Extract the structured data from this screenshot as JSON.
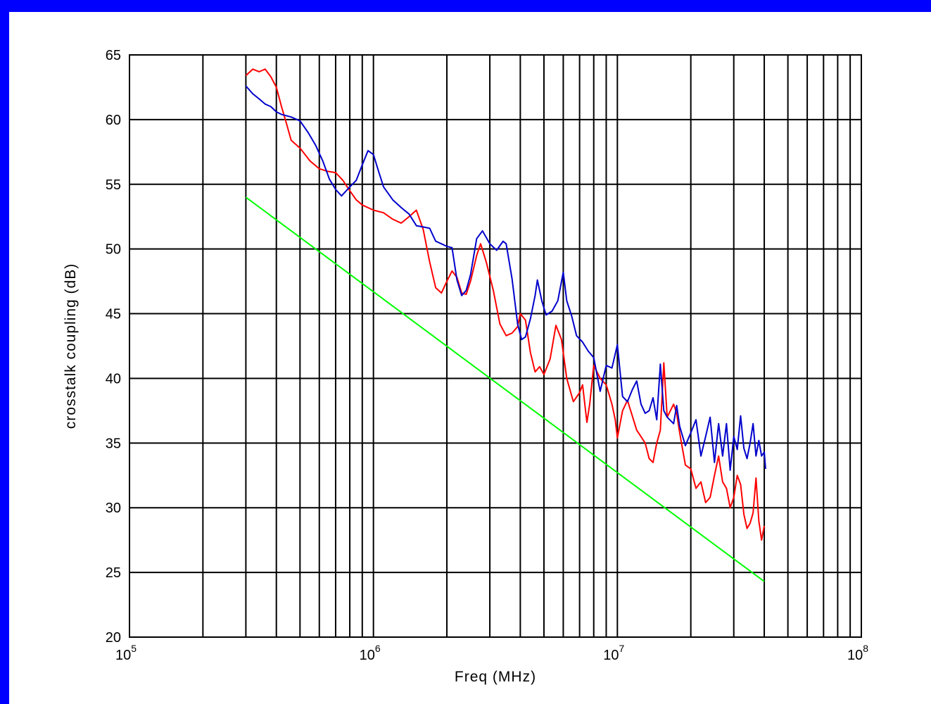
{
  "chart_data": {
    "type": "line",
    "title": "",
    "xlabel": "Freq (MHz)",
    "ylabel": "crosstalk coupling (dB)",
    "xscale": "log",
    "xlim": [
      100000,
      100000000
    ],
    "ylim": [
      20,
      65
    ],
    "grid": true,
    "legend": "none",
    "x_ticks": [
      {
        "value": 100000,
        "base": "10",
        "exp": "5"
      },
      {
        "value": 1000000,
        "base": "10",
        "exp": "6"
      },
      {
        "value": 10000000,
        "base": "10",
        "exp": "7"
      },
      {
        "value": 100000000,
        "base": "10",
        "exp": "8"
      }
    ],
    "y_ticks": [
      20,
      25,
      30,
      35,
      40,
      45,
      50,
      55,
      60,
      65
    ],
    "series": [
      {
        "color": "#ff0000",
        "points": [
          [
            300000,
            63.4
          ],
          [
            320000,
            63.9
          ],
          [
            340000,
            63.7
          ],
          [
            360000,
            63.9
          ],
          [
            380000,
            63.3
          ],
          [
            400000,
            62.5
          ],
          [
            420000,
            61.0
          ],
          [
            440000,
            59.7
          ],
          [
            460000,
            58.4
          ],
          [
            500000,
            57.8
          ],
          [
            550000,
            56.8
          ],
          [
            600000,
            56.2
          ],
          [
            650000,
            56.0
          ],
          [
            700000,
            55.9
          ],
          [
            750000,
            55.3
          ],
          [
            800000,
            54.5
          ],
          [
            850000,
            53.8
          ],
          [
            900000,
            53.4
          ],
          [
            1000000,
            53.0
          ],
          [
            1100000,
            52.8
          ],
          [
            1200000,
            52.3
          ],
          [
            1300000,
            52.0
          ],
          [
            1400000,
            52.5
          ],
          [
            1500000,
            53.0
          ],
          [
            1600000,
            51.5
          ],
          [
            1700000,
            49.0
          ],
          [
            1800000,
            47.0
          ],
          [
            1900000,
            46.6
          ],
          [
            2000000,
            47.5
          ],
          [
            2100000,
            48.3
          ],
          [
            2200000,
            47.8
          ],
          [
            2300000,
            46.6
          ],
          [
            2400000,
            46.5
          ],
          [
            2500000,
            47.5
          ],
          [
            2650000,
            49.5
          ],
          [
            2750000,
            50.4
          ],
          [
            2900000,
            49.0
          ],
          [
            3100000,
            46.8
          ],
          [
            3300000,
            44.2
          ],
          [
            3500000,
            43.3
          ],
          [
            3700000,
            43.5
          ],
          [
            3900000,
            44.0
          ],
          [
            4000000,
            45.0
          ],
          [
            4200000,
            44.5
          ],
          [
            4400000,
            42.0
          ],
          [
            4600000,
            40.5
          ],
          [
            4800000,
            40.9
          ],
          [
            5000000,
            40.3
          ],
          [
            5300000,
            41.5
          ],
          [
            5600000,
            44.1
          ],
          [
            5900000,
            43.0
          ],
          [
            6200000,
            40.0
          ],
          [
            6600000,
            38.2
          ],
          [
            7000000,
            38.9
          ],
          [
            7200000,
            39.5
          ],
          [
            7500000,
            36.6
          ],
          [
            7700000,
            38.0
          ],
          [
            8000000,
            41.0
          ],
          [
            8500000,
            40.0
          ],
          [
            9000000,
            39.5
          ],
          [
            9500000,
            38.0
          ],
          [
            9800000,
            36.8
          ],
          [
            10000000,
            35.4
          ],
          [
            10500000,
            37.5
          ],
          [
            11000000,
            38.3
          ],
          [
            12000000,
            36.0
          ],
          [
            13000000,
            35.0
          ],
          [
            13500000,
            33.8
          ],
          [
            14000000,
            33.5
          ],
          [
            14500000,
            35.0
          ],
          [
            15000000,
            36.0
          ],
          [
            15500000,
            41.2
          ],
          [
            16000000,
            37.0
          ],
          [
            17000000,
            38.0
          ],
          [
            17500000,
            37.3
          ],
          [
            18000000,
            35.8
          ],
          [
            19000000,
            33.3
          ],
          [
            20000000,
            33.0
          ],
          [
            21000000,
            31.5
          ],
          [
            22000000,
            32.0
          ],
          [
            23000000,
            30.4
          ],
          [
            24000000,
            30.8
          ],
          [
            25000000,
            32.5
          ],
          [
            26000000,
            34.0
          ],
          [
            27000000,
            32.0
          ],
          [
            28000000,
            31.5
          ],
          [
            29000000,
            30.0
          ],
          [
            30000000,
            30.8
          ],
          [
            31000000,
            32.5
          ],
          [
            32000000,
            31.8
          ],
          [
            33000000,
            29.5
          ],
          [
            34000000,
            28.4
          ],
          [
            35000000,
            28.8
          ],
          [
            36000000,
            29.6
          ],
          [
            37000000,
            32.3
          ],
          [
            38000000,
            29.0
          ],
          [
            39000000,
            27.5
          ],
          [
            40000000,
            28.6
          ]
        ]
      },
      {
        "color": "#0000cc",
        "points": [
          [
            300000,
            62.6
          ],
          [
            320000,
            62.0
          ],
          [
            340000,
            61.6
          ],
          [
            360000,
            61.2
          ],
          [
            380000,
            61.0
          ],
          [
            400000,
            60.6
          ],
          [
            420000,
            60.4
          ],
          [
            460000,
            60.2
          ],
          [
            500000,
            59.9
          ],
          [
            540000,
            59.0
          ],
          [
            580000,
            58.0
          ],
          [
            620000,
            56.8
          ],
          [
            660000,
            55.4
          ],
          [
            700000,
            54.6
          ],
          [
            740000,
            54.1
          ],
          [
            800000,
            54.8
          ],
          [
            850000,
            55.3
          ],
          [
            900000,
            56.5
          ],
          [
            950000,
            57.6
          ],
          [
            1000000,
            57.3
          ],
          [
            1050000,
            56.0
          ],
          [
            1100000,
            54.8
          ],
          [
            1200000,
            53.8
          ],
          [
            1300000,
            53.2
          ],
          [
            1400000,
            52.7
          ],
          [
            1500000,
            51.8
          ],
          [
            1600000,
            51.7
          ],
          [
            1700000,
            51.6
          ],
          [
            1800000,
            50.6
          ],
          [
            1900000,
            50.4
          ],
          [
            2000000,
            50.2
          ],
          [
            2100000,
            50.1
          ],
          [
            2200000,
            47.6
          ],
          [
            2300000,
            46.4
          ],
          [
            2400000,
            46.8
          ],
          [
            2500000,
            48.0
          ],
          [
            2650000,
            50.8
          ],
          [
            2800000,
            51.4
          ],
          [
            3000000,
            50.4
          ],
          [
            3200000,
            49.9
          ],
          [
            3400000,
            50.6
          ],
          [
            3500000,
            50.4
          ],
          [
            3700000,
            47.7
          ],
          [
            3900000,
            44.2
          ],
          [
            4050000,
            43.0
          ],
          [
            4200000,
            43.2
          ],
          [
            4400000,
            44.6
          ],
          [
            4600000,
            46.4
          ],
          [
            4700000,
            47.6
          ],
          [
            4900000,
            46.0
          ],
          [
            5100000,
            44.9
          ],
          [
            5400000,
            45.2
          ],
          [
            5700000,
            46.0
          ],
          [
            6000000,
            48.2
          ],
          [
            6200000,
            46.0
          ],
          [
            6500000,
            44.8
          ],
          [
            6800000,
            43.3
          ],
          [
            7200000,
            42.8
          ],
          [
            7600000,
            42.1
          ],
          [
            8000000,
            41.6
          ],
          [
            8500000,
            39.0
          ],
          [
            9000000,
            41.0
          ],
          [
            9500000,
            40.8
          ],
          [
            10000000,
            42.6
          ],
          [
            10500000,
            38.6
          ],
          [
            11000000,
            38.2
          ],
          [
            11500000,
            39.1
          ],
          [
            12000000,
            39.8
          ],
          [
            12500000,
            38.0
          ],
          [
            13000000,
            37.3
          ],
          [
            13500000,
            37.5
          ],
          [
            14000000,
            38.5
          ],
          [
            14500000,
            36.8
          ],
          [
            15000000,
            41.1
          ],
          [
            15500000,
            37.5
          ],
          [
            16000000,
            37.0
          ],
          [
            17000000,
            36.5
          ],
          [
            17500000,
            37.9
          ],
          [
            18000000,
            36.3
          ],
          [
            19000000,
            34.8
          ],
          [
            20000000,
            35.8
          ],
          [
            21000000,
            36.8
          ],
          [
            22000000,
            34.0
          ],
          [
            23000000,
            35.5
          ],
          [
            24000000,
            37.0
          ],
          [
            25000000,
            33.5
          ],
          [
            26000000,
            36.5
          ],
          [
            27000000,
            34.0
          ],
          [
            28000000,
            36.5
          ],
          [
            29000000,
            32.9
          ],
          [
            30000000,
            35.5
          ],
          [
            31000000,
            34.5
          ],
          [
            32000000,
            37.1
          ],
          [
            33000000,
            34.6
          ],
          [
            34000000,
            33.8
          ],
          [
            35000000,
            35.0
          ],
          [
            36000000,
            36.5
          ],
          [
            37000000,
            34.0
          ],
          [
            38000000,
            35.2
          ],
          [
            39000000,
            34.0
          ],
          [
            40000000,
            34.3
          ],
          [
            40500000,
            33.0
          ]
        ]
      },
      {
        "color": "#00ff00",
        "points": [
          [
            300000,
            54.0
          ],
          [
            40000000,
            24.3
          ]
        ]
      }
    ]
  }
}
